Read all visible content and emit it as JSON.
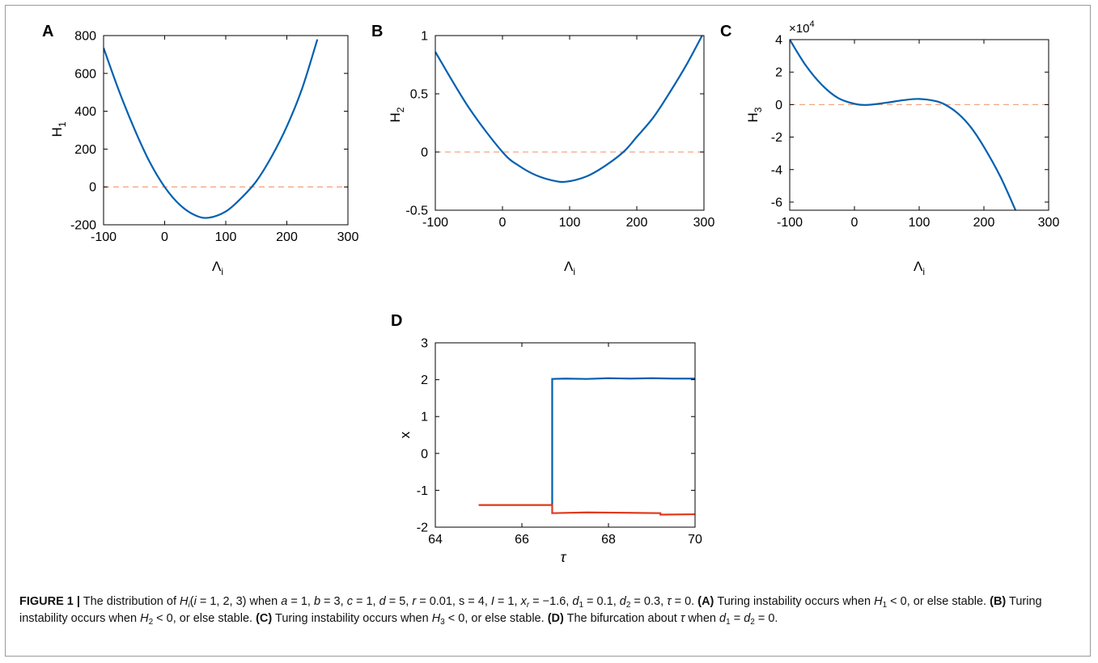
{
  "colors": {
    "curve": "#0060b0",
    "zero_line": "#f4a582",
    "red_branch": "#e0391b",
    "axis": "#000000"
  },
  "chart_data": [
    {
      "panel": "A",
      "type": "line",
      "xlabel": "Λ",
      "xlabel_sub": "i",
      "ylabel": "H",
      "ylabel_sub": "1",
      "xlim": [
        -100,
        300
      ],
      "ylim": [
        -200,
        800
      ],
      "xticks": [
        -100,
        0,
        100,
        200,
        300
      ],
      "yticks": [
        -200,
        0,
        200,
        400,
        600,
        800
      ],
      "series": [
        {
          "x": [
            -100,
            -75,
            -50,
            -25,
            0,
            25,
            50,
            72,
            100,
            125,
            150,
            175,
            200,
            225,
            250
          ],
          "y": [
            735,
            510,
            310,
            135,
            0,
            -95,
            -150,
            -163,
            -130,
            -60,
            30,
            160,
            320,
            520,
            780
          ]
        }
      ],
      "reference_line": 0
    },
    {
      "panel": "B",
      "type": "line",
      "xlabel": "Λ",
      "xlabel_sub": "i",
      "ylabel": "H",
      "ylabel_sub": "2",
      "xlim": [
        -100,
        300
      ],
      "ylim": [
        -0.5,
        1
      ],
      "xticks": [
        -100,
        0,
        100,
        200,
        300
      ],
      "yticks": [
        -0.5,
        0,
        0.5,
        1
      ],
      "ytick_labels": [
        "-0.5",
        "0",
        "0.5",
        "1"
      ],
      "series": [
        {
          "x": [
            -100,
            -50,
            0,
            25,
            50,
            75,
            95,
            125,
            150,
            180,
            200,
            225,
            250,
            275,
            300
          ],
          "y": [
            0.86,
            0.38,
            0.0,
            -0.12,
            -0.2,
            -0.245,
            -0.255,
            -0.21,
            -0.13,
            0.0,
            0.13,
            0.3,
            0.52,
            0.76,
            1.03
          ]
        }
      ],
      "reference_line": 0
    },
    {
      "panel": "C",
      "type": "line",
      "xlabel": "Λ",
      "xlabel_sub": "i",
      "ylabel": "H",
      "ylabel_sub": "3",
      "exponent_label": "×10",
      "exponent_power": "4",
      "xlim": [
        -100,
        300
      ],
      "ylim": [
        -6.5,
        4
      ],
      "xticks": [
        -100,
        0,
        100,
        200,
        300
      ],
      "yticks": [
        -6,
        -4,
        -2,
        0,
        2,
        4
      ],
      "series": [
        {
          "x": [
            -100,
            -75,
            -50,
            -25,
            0,
            20,
            50,
            75,
            100,
            125,
            140,
            160,
            180,
            200,
            225,
            250
          ],
          "y": [
            4.0,
            2.4,
            1.2,
            0.4,
            0.05,
            -0.02,
            0.12,
            0.27,
            0.35,
            0.22,
            0.0,
            -0.55,
            -1.4,
            -2.6,
            -4.4,
            -6.6
          ]
        }
      ],
      "reference_line": 0
    },
    {
      "panel": "D",
      "type": "line",
      "xlabel": "τ",
      "ylabel": "x",
      "xlim": [
        64,
        70
      ],
      "ylim": [
        -2,
        3
      ],
      "xticks": [
        64,
        66,
        68,
        70
      ],
      "yticks": [
        -2,
        -1,
        0,
        1,
        2,
        3
      ],
      "series": [
        {
          "color_key": "curve",
          "x": [
            66.7,
            66.7,
            67.0,
            67.5,
            68.0,
            68.5,
            69.0,
            69.5,
            70.0
          ],
          "y": [
            -1.4,
            2.02,
            2.03,
            2.02,
            2.04,
            2.03,
            2.04,
            2.03,
            2.03
          ]
        },
        {
          "color_key": "red_branch",
          "x": [
            65.0,
            66.7,
            66.7,
            67.5,
            68.5,
            69.2,
            69.2,
            70.0
          ],
          "y": [
            -1.4,
            -1.4,
            -1.62,
            -1.6,
            -1.61,
            -1.62,
            -1.66,
            -1.65
          ]
        }
      ]
    }
  ],
  "caption": {
    "label": "FIGURE 1 |",
    "p1": " The distribution of ",
    "hi_H": "H",
    "hi_i": "i",
    "p2": "(",
    "i_var": "i",
    "p3": " = 1, 2, 3) when ",
    "a": "a",
    "p4": " = 1, ",
    "b": "b",
    "p5": " = 3, ",
    "c": "c",
    "p6": " = 1, ",
    "d": "d",
    "p7": " = 5, ",
    "r": "r",
    "p8": " = 0.01, s = 4, ",
    "I": "I",
    "p9": " = 1, ",
    "xr": "x",
    "xr_sub": "r",
    "p10": " = −1.6, ",
    "d1": "d",
    "d1_sub": "1",
    "p11": " = 0.1, ",
    "d2": "d",
    "d2_sub": "2",
    "p12": " = 0.3, ",
    "tau": "τ",
    "p13": " = 0. ",
    "A": "(A)",
    "pA": " Turing instability occurs when ",
    "H1": "H",
    "H1_sub": "1",
    "pA2": " < 0, or else stable. ",
    "B": "(B)",
    "pB": " Turing instability occurs when ",
    "H2": "H",
    "H2_sub": "2",
    "pB2": " < 0, or else stable. ",
    "C": "(C)",
    "pC": " Turing instability occurs when ",
    "H3": "H",
    "H3_sub": "3",
    "pC2": " < 0, or else stable. ",
    "D": "(D)",
    "pD": " The bifurcation about ",
    "tau2": "τ",
    "pD2": " when ",
    "dd1": "d",
    "dd1_sub": "1",
    "pD3": " = ",
    "dd2": "d",
    "dd2_sub": "2",
    "pD4": " = 0."
  }
}
